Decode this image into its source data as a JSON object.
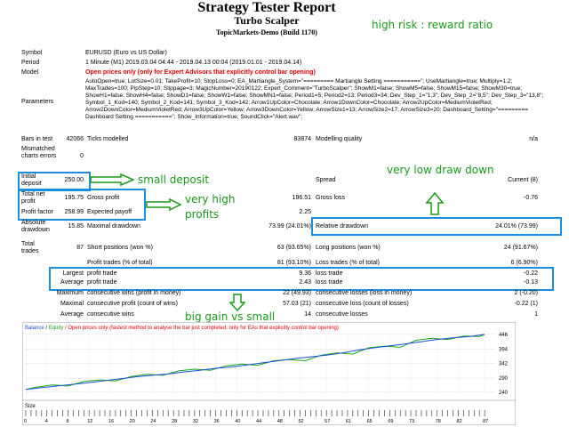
{
  "header": {
    "title": "Strategy Tester Report",
    "subtitle": "Turbo Scalper",
    "server": "TopicMarkets-Demo (Build 1170)"
  },
  "info": {
    "symbol_label": "Symbol",
    "symbol_value": "EURUSD (Euro vs US Dollar)",
    "period_label": "Period",
    "period_value": "1 Minute (M1) 2019.03.04 04:44 - 2019.04.13 00:04 (2019.01.01 - 2019.04.14)",
    "model_label": "Model",
    "model_value": "Open prices only (only for Expert Advisors that explicitly control bar opening)",
    "params_label": "Parameters",
    "params_value": "AutoOpen=true; LotSize=0.01; TakeProfit=10; StopLoss=0; EA_Martiangle_System=\"========= Martiangle Setting ===========\"; UseMartiangle=true; Multiply=1.2; MaxTrades=100; PipStep=10; Slippage=3; MagicNumber=20190122; Expert_Comment=\"TurboScalper\"; ShowM1=false; ShowM5=false; ShowM15=false; ShowM30=true; ShowH1=false; ShowH4=false; ShowD1=false; ShowW1=false; ShowMN1=false; Period1=5; Period2=13; Period3=34; Dev_Step_1=\"1,3\"; Dev_Step_2=\"8,5\"; Dev_Step_3=\"13,8\"; Symbol_1_Kod=140; Symbol_2_Kod=141; Symbol_3_Kod=142; Arrow1UpColor=Chocolate; Arrow1DownColor=Chocolate; Arrow2UpColor=MediumVioletRed; Arrow2DownColor=MediumVioletRed; Arrow3UpColor=Yellow; Arrow3DownColor=Yellow; ArrowSize1=13; ArrowSize2=17; ArrowSize3=20; Dashboard_Setting=\"========= Dashboard Setting ===========\"; Show_Information=true; SoundClick=\"Alert.wav\";"
  },
  "stats": {
    "bars_label": "Bars in test",
    "bars_value": "42066",
    "ticks_label": "Ticks modelled",
    "ticks_value": "83874",
    "quality_label": "Modelling quality",
    "quality_value": "n/a",
    "mismatched_label": "Mismatched charts errors",
    "mismatched_value": "0",
    "deposit_label": "Initial deposit",
    "deposit_value": "250.00",
    "spread_label": "Spread",
    "spread_value": "Current (8)",
    "netprofit_label": "Total net profit",
    "netprofit_value": "195.75",
    "grossprofit_label": "Gross profit",
    "grossprofit_value": "196.51",
    "grossloss_label": "Gross loss",
    "grossloss_value": "-0.76",
    "pf_label": "Profit factor",
    "pf_value": "258.99",
    "payoff_label": "Expected payoff",
    "payoff_value": "2.25",
    "absdd_label": "Absolute drawdown",
    "absdd_value": "15.85",
    "maxdd_label": "Maximal drawdown",
    "maxdd_value": "73.99 (24.01%)",
    "reldd_label": "Relative drawdown",
    "reldd_value": "24.01% (73.99)",
    "trades_label": "Total trades",
    "trades_value": "87",
    "short_label": "Short positions (won %)",
    "short_value": "63 (93.65%)",
    "long_label": "Long positions (won %)",
    "long_value": "24 (91.67%)",
    "profittrades_label": "Profit trades (% of total)",
    "profittrades_value": "81 (93.10%)",
    "losstrades_label": "Loss trades (% of total)",
    "losstrades_value": "6 (6.90%)",
    "largest_label": "Largest",
    "average_label": "Average",
    "maximum_label": "Maximum",
    "maximal_label": "Maximal",
    "average2_label": "Average",
    "profittrade_label": "profit trade",
    "largest_profit": "9.36",
    "average_profit": "2.43",
    "losstrade_label": "loss trade",
    "largest_loss": "-0.22",
    "average_loss": "-0.13",
    "conswins_label": "consecutive wins (profit in money)",
    "conswins_value": "22 (49.93)",
    "conslosses_label": "consecutive losses (loss in money)",
    "conslosses_value": "2 (-0.20)",
    "consprofit_label": "consecutive profit (count of wins)",
    "consprofit_value": "57.03 (21)",
    "consloss_label": "consecutive loss (count of losses)",
    "consloss_value": "-0.22 (1)",
    "avgwins_label": "consecutive wins",
    "avgwins_value": "14",
    "avglosses_label": "consecutive losses",
    "avglosses_value": "1"
  },
  "annotations": {
    "risk": "high risk : reward ratio",
    "deposit": "small deposit",
    "profits": "very high profits",
    "drawdown": "very low draw down",
    "gain": "big gain vs small loss"
  },
  "colors": {
    "annotation": "#1a9a1a",
    "box": "#1a8fe0",
    "balance": "#1a4fd8",
    "equity": "#1aa81a"
  },
  "chart_data": {
    "type": "line",
    "legend_balance": "Balance",
    "legend_sep": " / ",
    "legend_equity": "Equity",
    "legend_rest": " / Open prices only (fastest method to analyse the bar just completed, only for EAs that explicitly control bar opening)",
    "size_label": "Size",
    "yticks": [
      "446",
      "394",
      "342",
      "290",
      "240"
    ],
    "yticks_num": [
      446,
      394,
      342,
      290,
      240
    ],
    "ylim": [
      230,
      452
    ],
    "xticks": [
      "0",
      "4",
      "8",
      "12",
      "16",
      "20",
      "24",
      "28",
      "32",
      "36",
      "40",
      "44",
      "48",
      "52",
      "57",
      "61",
      "65",
      "69",
      "73",
      "78",
      "82",
      "87"
    ],
    "xticks_num": [
      0,
      4,
      8,
      12,
      16,
      20,
      24,
      28,
      32,
      36,
      40,
      44,
      48,
      52,
      57,
      61,
      65,
      69,
      73,
      78,
      82,
      87
    ],
    "xlim": [
      0,
      89
    ],
    "balance_x": [
      0,
      3,
      6,
      9,
      12,
      15,
      18,
      21,
      24,
      27,
      30,
      33,
      36,
      39,
      42,
      45,
      48,
      51,
      54,
      57,
      60,
      63,
      66,
      69,
      72,
      75,
      78,
      81,
      84,
      87
    ],
    "balance_y": [
      250,
      256,
      262,
      268,
      274,
      281,
      288,
      295,
      300,
      305,
      312,
      318,
      325,
      330,
      337,
      345,
      352,
      360,
      366,
      372,
      380,
      390,
      398,
      405,
      412,
      420,
      428,
      434,
      438,
      446
    ],
    "equity_x": [
      0,
      2,
      5,
      8,
      11,
      14,
      17,
      20,
      23,
      26,
      29,
      32,
      35,
      38,
      41,
      44,
      47,
      50,
      53,
      56,
      59,
      62,
      65,
      68,
      71,
      74,
      77,
      80,
      83,
      86,
      87
    ],
    "equity_y": [
      250,
      258,
      266,
      262,
      278,
      284,
      280,
      296,
      304,
      300,
      316,
      322,
      318,
      334,
      340,
      336,
      352,
      356,
      352,
      372,
      380,
      376,
      398,
      404,
      400,
      425,
      432,
      428,
      440,
      438,
      446
    ]
  }
}
